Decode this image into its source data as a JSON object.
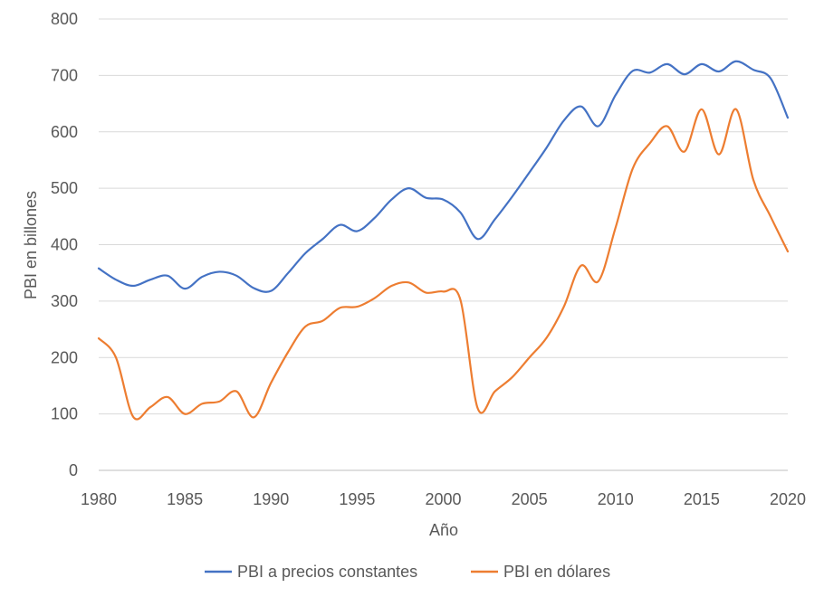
{
  "chart_data": {
    "type": "line",
    "title": "",
    "xlabel": "Año",
    "ylabel": "PBI en billones",
    "xlim": [
      1980,
      2020
    ],
    "ylim": [
      0,
      800
    ],
    "x_ticks": [
      "1980",
      "1985",
      "1990",
      "1995",
      "2000",
      "2005",
      "2010",
      "2015",
      "2020"
    ],
    "y_ticks": [
      "0",
      "100",
      "200",
      "300",
      "400",
      "500",
      "600",
      "700",
      "800"
    ],
    "grid": "horizontal",
    "legend_position": "bottom",
    "x": [
      1980,
      1981,
      1982,
      1983,
      1984,
      1985,
      1986,
      1987,
      1988,
      1989,
      1990,
      1991,
      1992,
      1993,
      1994,
      1995,
      1996,
      1997,
      1998,
      1999,
      2000,
      2001,
      2002,
      2003,
      2004,
      2005,
      2006,
      2007,
      2008,
      2009,
      2010,
      2011,
      2012,
      2013,
      2014,
      2015,
      2016,
      2017,
      2018,
      2019,
      2020
    ],
    "series": [
      {
        "name": "PBI a precios constantes",
        "color": "#4472c4",
        "values": [
          358,
          338,
          327,
          338,
          345,
          322,
          343,
          352,
          345,
          323,
          318,
          350,
          385,
          410,
          435,
          424,
          447,
          480,
          500,
          483,
          480,
          457,
          410,
          445,
          485,
          528,
          572,
          620,
          645,
          610,
          665,
          708,
          705,
          720,
          702,
          720,
          707,
          725,
          710,
          695,
          625
        ]
      },
      {
        "name": "PBI en dólares",
        "color": "#ed7d31",
        "values": [
          234,
          200,
          95,
          112,
          130,
          100,
          118,
          122,
          140,
          94,
          155,
          210,
          255,
          265,
          288,
          290,
          305,
          327,
          333,
          315,
          317,
          302,
          110,
          140,
          165,
          200,
          235,
          290,
          363,
          335,
          430,
          535,
          580,
          610,
          565,
          640,
          560,
          640,
          515,
          450,
          388
        ]
      }
    ]
  }
}
